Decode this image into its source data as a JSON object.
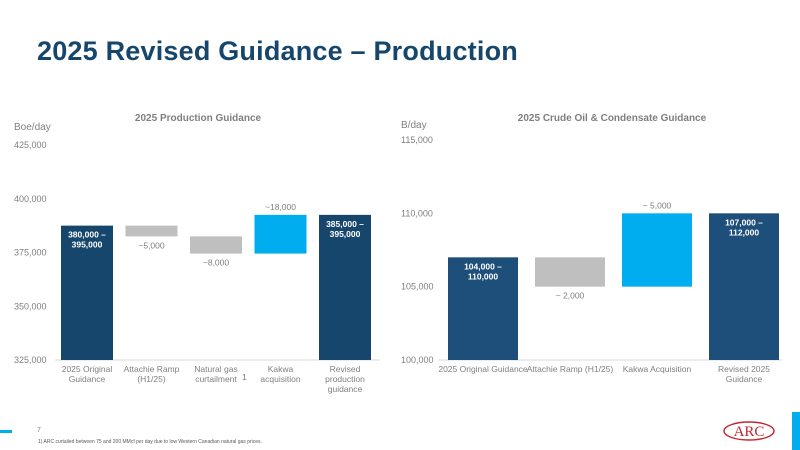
{
  "page": {
    "title": "2025 Revised Guidance – Production",
    "page_number": "7",
    "footnote": "1) ARC curtailed between 75 and 200 MMcf per day due to low Western Canadian natural gas prices.",
    "logo_text": "ARC"
  },
  "colors": {
    "dark": "#17466d",
    "dark2": "#1e4e7a",
    "gray": "#bfbfbf",
    "cyan": "#00aeef"
  },
  "chart_data": [
    {
      "type": "bar",
      "subtype": "waterfall",
      "title": "2025 Production Guidance",
      "ylabel": "Boe/day",
      "ylim": [
        325000,
        425000
      ],
      "yticks": [
        "325,000",
        "350,000",
        "375,000",
        "400,000",
        "425,000"
      ],
      "categories": [
        "2025 Original Guidance",
        "Attachie Ramp (H1/25)",
        "Natural gas curtailment",
        "Kakwa acquisition",
        "Revised production guidance"
      ],
      "category_lines": [
        [
          "2025 Original",
          "Guidance"
        ],
        [
          "Attachie Ramp",
          "(H1/25)"
        ],
        [
          "Natural gas",
          "curtailment"
        ],
        [
          "Kakwa",
          "acquisition"
        ],
        [
          "Revised",
          "production",
          "guidance"
        ]
      ],
      "footnote_marker": "1",
      "bars": [
        {
          "low": 325000,
          "high": 387500,
          "kind": "total",
          "label_lines": [
            "380,000 –",
            "395,000"
          ]
        },
        {
          "low": 382500,
          "high": 387500,
          "kind": "change",
          "label_lines": [
            "~5,000"
          ]
        },
        {
          "low": 374500,
          "high": 382500,
          "kind": "change",
          "label_lines": [
            "~8,000"
          ]
        },
        {
          "low": 374500,
          "high": 392500,
          "kind": "change",
          "label_lines": [
            "~18,000"
          ]
        },
        {
          "low": 325000,
          "high": 392500,
          "kind": "total",
          "label_lines": [
            "385,000 –",
            "395,000"
          ]
        }
      ]
    },
    {
      "type": "bar",
      "subtype": "waterfall",
      "title": "2025 Crude Oil & Condensate Guidance",
      "ylabel": "B/day",
      "ylim": [
        100000,
        115000
      ],
      "yticks": [
        "100,000",
        "105,000",
        "110,000",
        "115,000"
      ],
      "categories": [
        "2025 Original Guidance",
        "Attachie Ramp (H1/25)",
        "Kakwa Acquisition",
        "Revised 2025 Guidance"
      ],
      "category_lines": [
        [
          "2025 Original Guidance"
        ],
        [
          "Attachie Ramp (H1/25)"
        ],
        [
          "Kakwa Acquisition"
        ],
        [
          "Revised 2025",
          "Guidance"
        ]
      ],
      "bars": [
        {
          "low": 100000,
          "high": 107000,
          "kind": "total",
          "label_lines": [
            "104,000 –",
            "110,000"
          ]
        },
        {
          "low": 105000,
          "high": 107000,
          "kind": "change",
          "label_lines": [
            "~ 2,000"
          ]
        },
        {
          "low": 105000,
          "high": 110000,
          "kind": "change",
          "label_lines": [
            "~ 5,000"
          ]
        },
        {
          "low": 100000,
          "high": 110000,
          "kind": "total",
          "label_lines": [
            "107,000 –",
            "112,000"
          ]
        }
      ]
    }
  ]
}
